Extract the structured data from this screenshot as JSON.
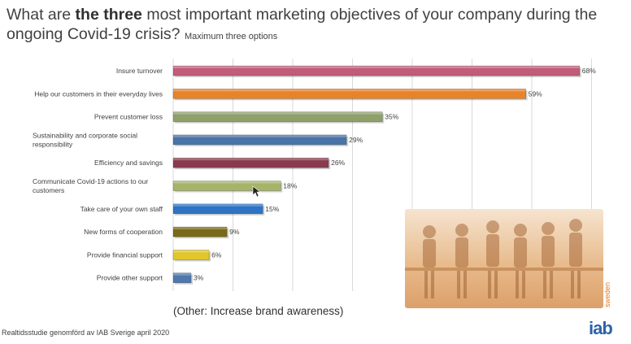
{
  "title": {
    "part1": "What are ",
    "bold": "the three",
    "part2": " most important marketing objectives of your company during the",
    "line2": "ongoing Covid-19 crisis?",
    "note": "Maximum three options"
  },
  "other_note": "(Other: Increase brand awareness)",
  "source": "Realtidsstudie genomförd av IAB Sverige april 2020",
  "logo": {
    "text": "iab",
    "sub": "sweden"
  },
  "chart_data": {
    "type": "bar",
    "orientation": "horizontal",
    "xlim": [
      0,
      70
    ],
    "grid": true,
    "categories": [
      "Insure turnover",
      "Help our customers in their everyday lives",
      "Prevent customer loss",
      "Sustainability and corporate social responsibility",
      "Efficiency and savings",
      "Communicate Covid-19 actions to our customers",
      "Take care of your own staff",
      "New forms of cooperation",
      "Provide financial support",
      "Provide other support"
    ],
    "label_lines": [
      [
        "Insure turnover"
      ],
      [
        "Help our customers in their everyday lives"
      ],
      [
        "Prevent customer loss"
      ],
      [
        "Sustainability and corporate social",
        "responsibility"
      ],
      [
        "Efficiency and savings"
      ],
      [
        "Communicate Covid-19 actions to our",
        "customers"
      ],
      [
        "Take care of your own staff"
      ],
      [
        "New forms of cooperation"
      ],
      [
        "Provide financial support"
      ],
      [
        "Provide other support"
      ]
    ],
    "values": [
      68,
      59,
      35,
      29,
      26,
      18,
      15,
      9,
      6,
      3
    ],
    "value_labels": [
      "68%",
      "59%",
      "35%",
      "29%",
      "26%",
      "18%",
      "15%",
      "9%",
      "6%",
      "3%"
    ],
    "colors": [
      "#c25c78",
      "#e8832a",
      "#8fa06a",
      "#4a73a8",
      "#8a3a4e",
      "#a6b46a",
      "#2d74c4",
      "#7a6a18",
      "#e2c62a",
      "#4f78ac"
    ]
  }
}
